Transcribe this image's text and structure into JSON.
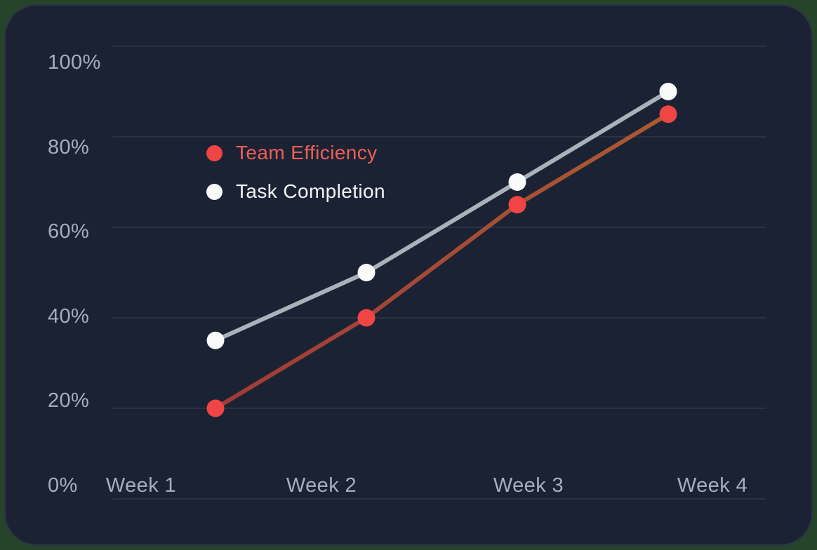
{
  "card": {
    "page_background": "#254429",
    "background": "#1b2233",
    "border_color": "#2d3447"
  },
  "chart_data": {
    "type": "line",
    "title": "",
    "xlabel": "",
    "ylabel": "",
    "categories": [
      "Week 1",
      "Week 2",
      "Week 3",
      "Week 4"
    ],
    "series": [
      {
        "name": "Team Efficiency",
        "values": [
          20,
          40,
          65,
          85
        ],
        "point_color": "#ef4545",
        "line_gradient": [
          "#a03b37",
          "#ab5a33"
        ],
        "label_color": "#ee5f57"
      },
      {
        "name": "Task Completion",
        "values": [
          35,
          50,
          70,
          90
        ],
        "point_color": "#fafafa",
        "line_color": "#a9b2bb",
        "label_color": "#f3f4f6"
      }
    ],
    "ylim": [
      0,
      100
    ],
    "yticks": [
      0,
      20,
      40,
      60,
      80,
      100
    ],
    "ytick_labels": [
      "0%",
      "20%",
      "40%",
      "60%",
      "80%",
      "100%"
    ],
    "grid": true,
    "gridline_color": "rgba(158,180,212,0.11)",
    "axis_label_color": "#a6aebb",
    "legend_position": "inside-top-left"
  }
}
